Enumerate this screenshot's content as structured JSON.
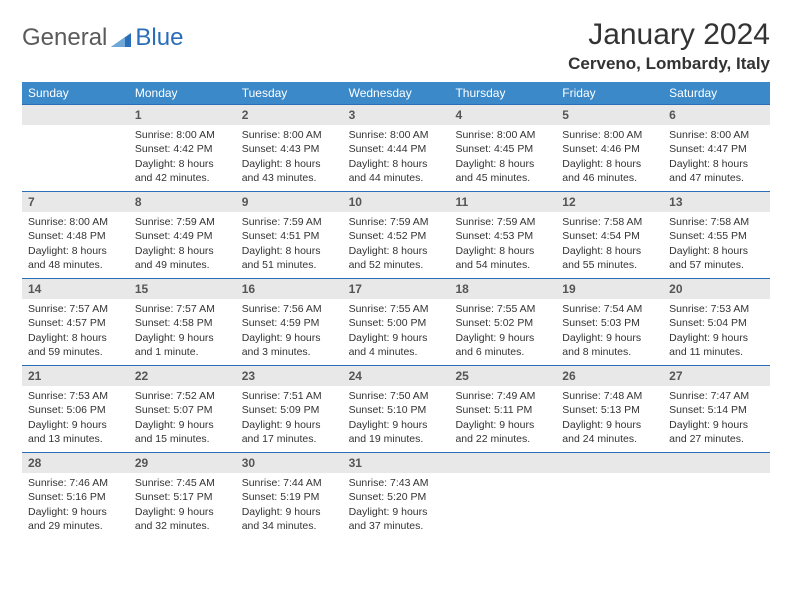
{
  "header": {
    "logo_word1": "General",
    "logo_word2": "Blue",
    "month_title": "January 2024",
    "location": "Cerveno, Lombardy, Italy"
  },
  "colors": {
    "header_bar": "#3b89c9",
    "rule": "#2a6db8",
    "daynum_bg": "#e8e8e8",
    "logo_gray": "#5a5a5a",
    "logo_blue": "#2a6db8"
  },
  "weekdays": [
    "Sunday",
    "Monday",
    "Tuesday",
    "Wednesday",
    "Thursday",
    "Friday",
    "Saturday"
  ],
  "weeks": [
    [
      {
        "n": "",
        "sunrise": "",
        "sunset": "",
        "daylight": ""
      },
      {
        "n": "1",
        "sunrise": "Sunrise: 8:00 AM",
        "sunset": "Sunset: 4:42 PM",
        "daylight": "Daylight: 8 hours and 42 minutes."
      },
      {
        "n": "2",
        "sunrise": "Sunrise: 8:00 AM",
        "sunset": "Sunset: 4:43 PM",
        "daylight": "Daylight: 8 hours and 43 minutes."
      },
      {
        "n": "3",
        "sunrise": "Sunrise: 8:00 AM",
        "sunset": "Sunset: 4:44 PM",
        "daylight": "Daylight: 8 hours and 44 minutes."
      },
      {
        "n": "4",
        "sunrise": "Sunrise: 8:00 AM",
        "sunset": "Sunset: 4:45 PM",
        "daylight": "Daylight: 8 hours and 45 minutes."
      },
      {
        "n": "5",
        "sunrise": "Sunrise: 8:00 AM",
        "sunset": "Sunset: 4:46 PM",
        "daylight": "Daylight: 8 hours and 46 minutes."
      },
      {
        "n": "6",
        "sunrise": "Sunrise: 8:00 AM",
        "sunset": "Sunset: 4:47 PM",
        "daylight": "Daylight: 8 hours and 47 minutes."
      }
    ],
    [
      {
        "n": "7",
        "sunrise": "Sunrise: 8:00 AM",
        "sunset": "Sunset: 4:48 PM",
        "daylight": "Daylight: 8 hours and 48 minutes."
      },
      {
        "n": "8",
        "sunrise": "Sunrise: 7:59 AM",
        "sunset": "Sunset: 4:49 PM",
        "daylight": "Daylight: 8 hours and 49 minutes."
      },
      {
        "n": "9",
        "sunrise": "Sunrise: 7:59 AM",
        "sunset": "Sunset: 4:51 PM",
        "daylight": "Daylight: 8 hours and 51 minutes."
      },
      {
        "n": "10",
        "sunrise": "Sunrise: 7:59 AM",
        "sunset": "Sunset: 4:52 PM",
        "daylight": "Daylight: 8 hours and 52 minutes."
      },
      {
        "n": "11",
        "sunrise": "Sunrise: 7:59 AM",
        "sunset": "Sunset: 4:53 PM",
        "daylight": "Daylight: 8 hours and 54 minutes."
      },
      {
        "n": "12",
        "sunrise": "Sunrise: 7:58 AM",
        "sunset": "Sunset: 4:54 PM",
        "daylight": "Daylight: 8 hours and 55 minutes."
      },
      {
        "n": "13",
        "sunrise": "Sunrise: 7:58 AM",
        "sunset": "Sunset: 4:55 PM",
        "daylight": "Daylight: 8 hours and 57 minutes."
      }
    ],
    [
      {
        "n": "14",
        "sunrise": "Sunrise: 7:57 AM",
        "sunset": "Sunset: 4:57 PM",
        "daylight": "Daylight: 8 hours and 59 minutes."
      },
      {
        "n": "15",
        "sunrise": "Sunrise: 7:57 AM",
        "sunset": "Sunset: 4:58 PM",
        "daylight": "Daylight: 9 hours and 1 minute."
      },
      {
        "n": "16",
        "sunrise": "Sunrise: 7:56 AM",
        "sunset": "Sunset: 4:59 PM",
        "daylight": "Daylight: 9 hours and 3 minutes."
      },
      {
        "n": "17",
        "sunrise": "Sunrise: 7:55 AM",
        "sunset": "Sunset: 5:00 PM",
        "daylight": "Daylight: 9 hours and 4 minutes."
      },
      {
        "n": "18",
        "sunrise": "Sunrise: 7:55 AM",
        "sunset": "Sunset: 5:02 PM",
        "daylight": "Daylight: 9 hours and 6 minutes."
      },
      {
        "n": "19",
        "sunrise": "Sunrise: 7:54 AM",
        "sunset": "Sunset: 5:03 PM",
        "daylight": "Daylight: 9 hours and 8 minutes."
      },
      {
        "n": "20",
        "sunrise": "Sunrise: 7:53 AM",
        "sunset": "Sunset: 5:04 PM",
        "daylight": "Daylight: 9 hours and 11 minutes."
      }
    ],
    [
      {
        "n": "21",
        "sunrise": "Sunrise: 7:53 AM",
        "sunset": "Sunset: 5:06 PM",
        "daylight": "Daylight: 9 hours and 13 minutes."
      },
      {
        "n": "22",
        "sunrise": "Sunrise: 7:52 AM",
        "sunset": "Sunset: 5:07 PM",
        "daylight": "Daylight: 9 hours and 15 minutes."
      },
      {
        "n": "23",
        "sunrise": "Sunrise: 7:51 AM",
        "sunset": "Sunset: 5:09 PM",
        "daylight": "Daylight: 9 hours and 17 minutes."
      },
      {
        "n": "24",
        "sunrise": "Sunrise: 7:50 AM",
        "sunset": "Sunset: 5:10 PM",
        "daylight": "Daylight: 9 hours and 19 minutes."
      },
      {
        "n": "25",
        "sunrise": "Sunrise: 7:49 AM",
        "sunset": "Sunset: 5:11 PM",
        "daylight": "Daylight: 9 hours and 22 minutes."
      },
      {
        "n": "26",
        "sunrise": "Sunrise: 7:48 AM",
        "sunset": "Sunset: 5:13 PM",
        "daylight": "Daylight: 9 hours and 24 minutes."
      },
      {
        "n": "27",
        "sunrise": "Sunrise: 7:47 AM",
        "sunset": "Sunset: 5:14 PM",
        "daylight": "Daylight: 9 hours and 27 minutes."
      }
    ],
    [
      {
        "n": "28",
        "sunrise": "Sunrise: 7:46 AM",
        "sunset": "Sunset: 5:16 PM",
        "daylight": "Daylight: 9 hours and 29 minutes."
      },
      {
        "n": "29",
        "sunrise": "Sunrise: 7:45 AM",
        "sunset": "Sunset: 5:17 PM",
        "daylight": "Daylight: 9 hours and 32 minutes."
      },
      {
        "n": "30",
        "sunrise": "Sunrise: 7:44 AM",
        "sunset": "Sunset: 5:19 PM",
        "daylight": "Daylight: 9 hours and 34 minutes."
      },
      {
        "n": "31",
        "sunrise": "Sunrise: 7:43 AM",
        "sunset": "Sunset: 5:20 PM",
        "daylight": "Daylight: 9 hours and 37 minutes."
      },
      {
        "n": "",
        "sunrise": "",
        "sunset": "",
        "daylight": ""
      },
      {
        "n": "",
        "sunrise": "",
        "sunset": "",
        "daylight": ""
      },
      {
        "n": "",
        "sunrise": "",
        "sunset": "",
        "daylight": ""
      }
    ]
  ]
}
